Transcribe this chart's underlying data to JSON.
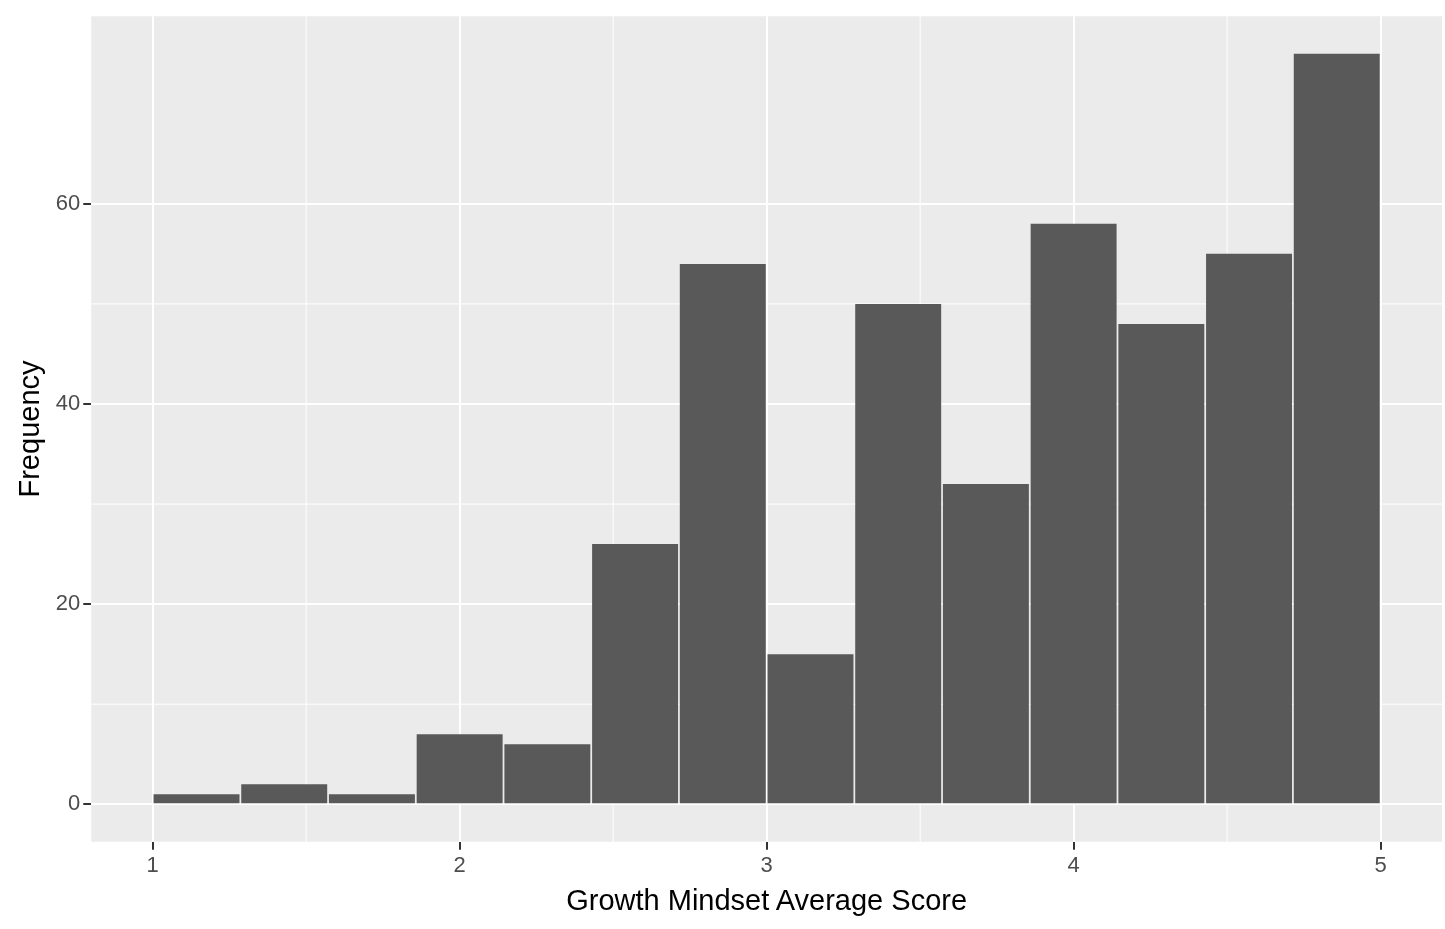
{
  "chart_data": {
    "type": "histogram",
    "xlabel": "Growth Mindset Average Score",
    "ylabel": "Frequency",
    "bins": [
      1,
      1.2857,
      1.5714,
      1.8571,
      2.1429,
      2.4286,
      2.7143,
      3,
      3.2857,
      3.5714,
      3.8571,
      4.1429,
      4.4286,
      4.7143,
      5
    ],
    "values": [
      1,
      2,
      1,
      7,
      6,
      26,
      54,
      15,
      50,
      32,
      58,
      48,
      55,
      75
    ],
    "color": "#595959",
    "xlim": [
      0.8,
      5.2
    ],
    "xticks": [
      1,
      2,
      3,
      4,
      5
    ],
    "ylim": [
      -3.75,
      78.75
    ],
    "yticks": [
      0,
      20,
      40,
      60
    ],
    "grid": true
  }
}
